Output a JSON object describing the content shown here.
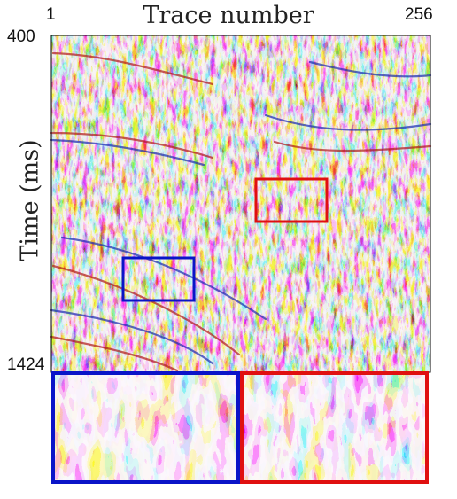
{
  "figure": {
    "x_axis_title": "Trace number",
    "x_axis_start": "1",
    "x_axis_end": "256",
    "y_axis_title": "Time (ms)",
    "y_axis_start": "400",
    "y_axis_end": "1424"
  },
  "colors": {
    "positive_amplitude": "#d01c1c",
    "negative_amplitude": "#1c28c8",
    "zero_amplitude": "#ffffff",
    "blue_box": "#0a14c8",
    "red_box": "#e01010"
  },
  "zoom_panels": [
    {
      "name": "blue-box-zoom",
      "box_color": "blue"
    },
    {
      "name": "red-box-zoom",
      "box_color": "red"
    }
  ]
}
